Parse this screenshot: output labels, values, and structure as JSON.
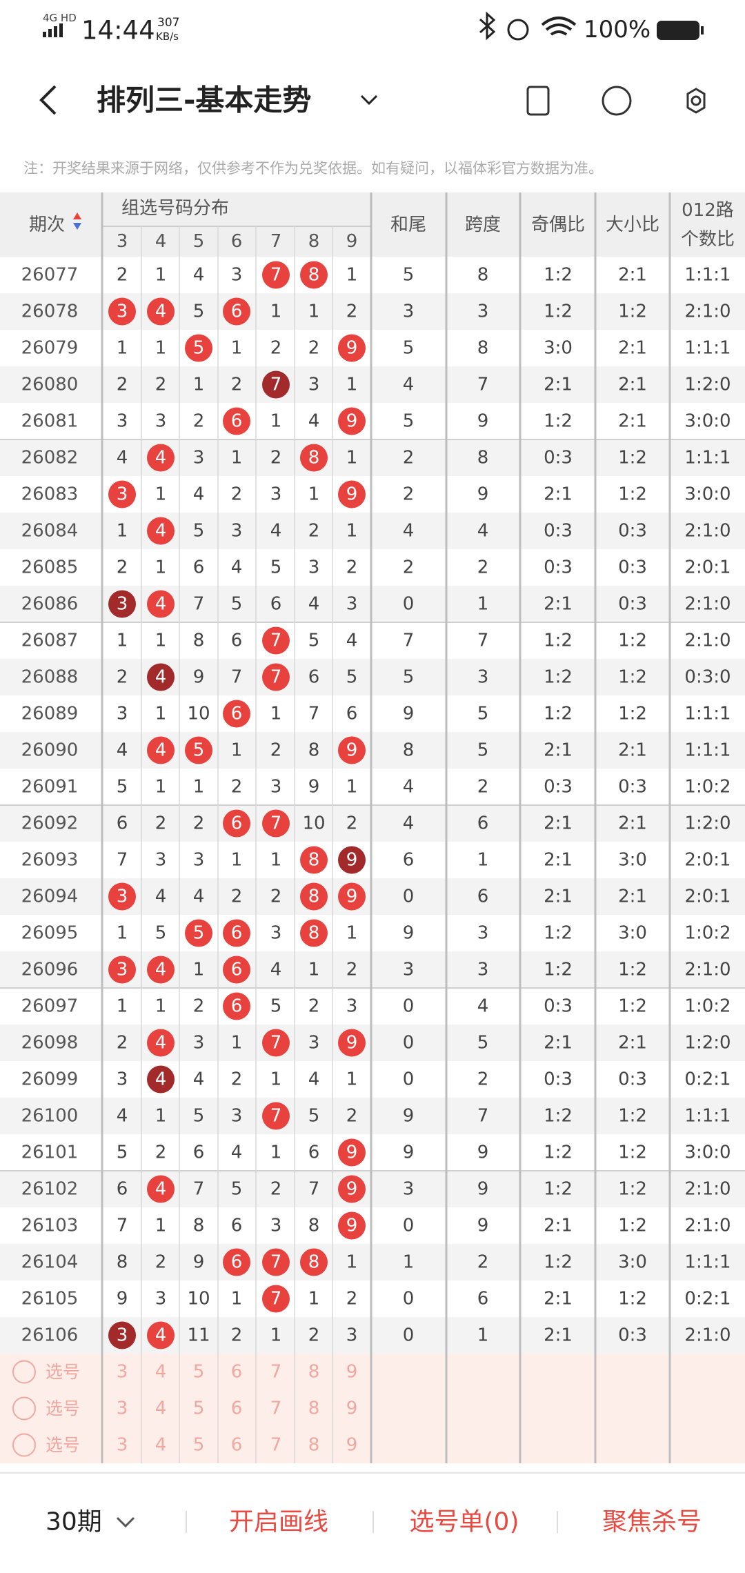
{
  "status_bar": {
    "network": "4G HD",
    "time": "14:44",
    "speed": "307",
    "speed_unit": "KB/s",
    "battery": "100%"
  },
  "header": {
    "title": "排列三-基本走势"
  },
  "note": "注：开奖结果来源于网络，仅供参考不作为兑奖依据。如有疑问，以福体彩官方数据为准。",
  "table": {
    "columns": {
      "period": "期次",
      "group": "组选号码分布",
      "digits": [
        3,
        4,
        5,
        6,
        7,
        8,
        9
      ],
      "sum_tail": "和尾",
      "span": "跨度",
      "odd_even": "奇偶比",
      "big_small": "大小比",
      "road": [
        "012路",
        "个数比"
      ]
    },
    "rows": [
      {
        "period": 26077,
        "cells": [
          2,
          1,
          4,
          3,
          {
            "value": 7,
            "color": "#e8423f"
          },
          {
            "value": 8,
            "color": "#e8423f"
          },
          1
        ],
        "sum_tail": 5,
        "span": 8,
        "odd_even": "1:2",
        "big_small": "2:1",
        "road": "1:1:1"
      },
      {
        "period": 26078,
        "cells": [
          {
            "value": 3,
            "color": "#e8423f"
          },
          {
            "value": 4,
            "color": "#e8423f"
          },
          5,
          {
            "value": 6,
            "color": "#e8423f"
          },
          1,
          1,
          2
        ],
        "sum_tail": 3,
        "span": 3,
        "odd_even": "1:2",
        "big_small": "1:2",
        "road": "2:1:0"
      },
      {
        "period": 26079,
        "cells": [
          1,
          1,
          {
            "value": 5,
            "color": "#e8423f"
          },
          1,
          2,
          2,
          {
            "value": 9,
            "color": "#e8423f"
          }
        ],
        "sum_tail": 5,
        "span": 8,
        "odd_even": "3:0",
        "big_small": "2:1",
        "road": "1:1:1"
      },
      {
        "period": 26080,
        "cells": [
          2,
          2,
          1,
          2,
          {
            "value": 7,
            "color": "#a22a2b"
          },
          3,
          1
        ],
        "sum_tail": 4,
        "span": 7,
        "odd_even": "2:1",
        "big_small": "2:1",
        "road": "1:2:0"
      },
      {
        "period": 26081,
        "cells": [
          3,
          3,
          2,
          {
            "value": 6,
            "color": "#e8423f"
          },
          1,
          4,
          {
            "value": 9,
            "color": "#e8423f"
          }
        ],
        "sum_tail": 5,
        "span": 9,
        "odd_even": "1:2",
        "big_small": "2:1",
        "road": "3:0:0"
      },
      {
        "period": 26082,
        "cells": [
          4,
          {
            "value": 4,
            "color": "#e8423f"
          },
          3,
          1,
          2,
          {
            "value": 8,
            "color": "#e8423f"
          },
          1
        ],
        "sum_tail": 2,
        "span": 8,
        "odd_even": "0:3",
        "big_small": "1:2",
        "road": "1:1:1"
      },
      {
        "period": 26083,
        "cells": [
          {
            "value": 3,
            "color": "#e8423f"
          },
          1,
          4,
          2,
          3,
          1,
          {
            "value": 9,
            "color": "#e8423f"
          }
        ],
        "sum_tail": 2,
        "span": 9,
        "odd_even": "2:1",
        "big_small": "1:2",
        "road": "3:0:0"
      },
      {
        "period": 26084,
        "cells": [
          1,
          {
            "value": 4,
            "color": "#e8423f"
          },
          5,
          3,
          4,
          2,
          1
        ],
        "sum_tail": 4,
        "span": 4,
        "odd_even": "0:3",
        "big_small": "0:3",
        "road": "2:1:0"
      },
      {
        "period": 26085,
        "cells": [
          2,
          1,
          6,
          4,
          5,
          3,
          2
        ],
        "sum_tail": 2,
        "span": 2,
        "odd_even": "0:3",
        "big_small": "0:3",
        "road": "2:0:1"
      },
      {
        "period": 26086,
        "cells": [
          {
            "value": 3,
            "color": "#a22a2b"
          },
          {
            "value": 4,
            "color": "#e8423f"
          },
          7,
          5,
          6,
          4,
          3
        ],
        "sum_tail": 0,
        "span": 1,
        "odd_even": "2:1",
        "big_small": "0:3",
        "road": "2:1:0"
      },
      {
        "period": 26087,
        "cells": [
          1,
          1,
          8,
          6,
          {
            "value": 7,
            "color": "#e8423f"
          },
          5,
          4
        ],
        "sum_tail": 7,
        "span": 7,
        "odd_even": "1:2",
        "big_small": "1:2",
        "road": "2:1:0"
      },
      {
        "period": 26088,
        "cells": [
          2,
          {
            "value": 4,
            "color": "#a22a2b"
          },
          9,
          7,
          {
            "value": 7,
            "color": "#e8423f"
          },
          6,
          5
        ],
        "sum_tail": 5,
        "span": 3,
        "odd_even": "1:2",
        "big_small": "1:2",
        "road": "0:3:0"
      },
      {
        "period": 26089,
        "cells": [
          3,
          1,
          10,
          {
            "value": 6,
            "color": "#e8423f"
          },
          1,
          7,
          6
        ],
        "sum_tail": 9,
        "span": 5,
        "odd_even": "1:2",
        "big_small": "1:2",
        "road": "1:1:1"
      },
      {
        "period": 26090,
        "cells": [
          4,
          {
            "value": 4,
            "color": "#e8423f"
          },
          {
            "value": 5,
            "color": "#e8423f"
          },
          1,
          2,
          8,
          {
            "value": 9,
            "color": "#e8423f"
          }
        ],
        "sum_tail": 8,
        "span": 5,
        "odd_even": "2:1",
        "big_small": "2:1",
        "road": "1:1:1"
      },
      {
        "period": 26091,
        "cells": [
          5,
          1,
          1,
          2,
          3,
          9,
          1
        ],
        "sum_tail": 4,
        "span": 2,
        "odd_even": "0:3",
        "big_small": "0:3",
        "road": "1:0:2"
      },
      {
        "period": 26092,
        "cells": [
          6,
          2,
          2,
          {
            "value": 6,
            "color": "#e8423f"
          },
          {
            "value": 7,
            "color": "#e8423f"
          },
          10,
          2
        ],
        "sum_tail": 4,
        "span": 6,
        "odd_even": "2:1",
        "big_small": "2:1",
        "road": "1:2:0"
      },
      {
        "period": 26093,
        "cells": [
          7,
          3,
          3,
          1,
          1,
          {
            "value": 8,
            "color": "#e8423f"
          },
          {
            "value": 9,
            "color": "#a22a2b"
          }
        ],
        "sum_tail": 6,
        "span": 1,
        "odd_even": "2:1",
        "big_small": "3:0",
        "road": "2:0:1"
      },
      {
        "period": 26094,
        "cells": [
          {
            "value": 3,
            "color": "#e8423f"
          },
          4,
          4,
          2,
          2,
          {
            "value": 8,
            "color": "#e8423f"
          },
          {
            "value": 9,
            "color": "#e8423f"
          }
        ],
        "sum_tail": 0,
        "span": 6,
        "odd_even": "2:1",
        "big_small": "2:1",
        "road": "2:0:1"
      },
      {
        "period": 26095,
        "cells": [
          1,
          5,
          {
            "value": 5,
            "color": "#e8423f"
          },
          {
            "value": 6,
            "color": "#e8423f"
          },
          3,
          {
            "value": 8,
            "color": "#e8423f"
          },
          1
        ],
        "sum_tail": 9,
        "span": 3,
        "odd_even": "1:2",
        "big_small": "3:0",
        "road": "1:0:2"
      },
      {
        "period": 26096,
        "cells": [
          {
            "value": 3,
            "color": "#e8423f"
          },
          {
            "value": 4,
            "color": "#e8423f"
          },
          1,
          {
            "value": 6,
            "color": "#e8423f"
          },
          4,
          1,
          2
        ],
        "sum_tail": 3,
        "span": 3,
        "odd_even": "1:2",
        "big_small": "1:2",
        "road": "2:1:0"
      },
      {
        "period": 26097,
        "cells": [
          1,
          1,
          2,
          {
            "value": 6,
            "color": "#e8423f"
          },
          5,
          2,
          3
        ],
        "sum_tail": 0,
        "span": 4,
        "odd_even": "0:3",
        "big_small": "1:2",
        "road": "1:0:2"
      },
      {
        "period": 26098,
        "cells": [
          2,
          {
            "value": 4,
            "color": "#e8423f"
          },
          3,
          1,
          {
            "value": 7,
            "color": "#e8423f"
          },
          3,
          {
            "value": 9,
            "color": "#e8423f"
          }
        ],
        "sum_tail": 0,
        "span": 5,
        "odd_even": "2:1",
        "big_small": "2:1",
        "road": "1:2:0"
      },
      {
        "period": 26099,
        "cells": [
          3,
          {
            "value": 4,
            "color": "#a22a2b"
          },
          4,
          2,
          1,
          4,
          1
        ],
        "sum_tail": 0,
        "span": 2,
        "odd_even": "0:3",
        "big_small": "0:3",
        "road": "0:2:1"
      },
      {
        "period": 26100,
        "cells": [
          4,
          1,
          5,
          3,
          {
            "value": 7,
            "color": "#e8423f"
          },
          5,
          2
        ],
        "sum_tail": 9,
        "span": 7,
        "odd_even": "1:2",
        "big_small": "1:2",
        "road": "1:1:1"
      },
      {
        "period": 26101,
        "cells": [
          5,
          2,
          6,
          4,
          1,
          6,
          {
            "value": 9,
            "color": "#e8423f"
          }
        ],
        "sum_tail": 9,
        "span": 9,
        "odd_even": "1:2",
        "big_small": "1:2",
        "road": "3:0:0"
      },
      {
        "period": 26102,
        "cells": [
          6,
          {
            "value": 4,
            "color": "#e8423f"
          },
          7,
          5,
          2,
          7,
          {
            "value": 9,
            "color": "#e8423f"
          }
        ],
        "sum_tail": 3,
        "span": 9,
        "odd_even": "1:2",
        "big_small": "1:2",
        "road": "2:1:0"
      },
      {
        "period": 26103,
        "cells": [
          7,
          1,
          8,
          6,
          3,
          8,
          {
            "value": 9,
            "color": "#e8423f"
          }
        ],
        "sum_tail": 0,
        "span": 9,
        "odd_even": "2:1",
        "big_small": "1:2",
        "road": "2:1:0"
      },
      {
        "period": 26104,
        "cells": [
          8,
          2,
          9,
          {
            "value": 6,
            "color": "#e8423f"
          },
          {
            "value": 7,
            "color": "#e8423f"
          },
          {
            "value": 8,
            "color": "#e8423f"
          },
          1
        ],
        "sum_tail": 1,
        "span": 2,
        "odd_even": "1:2",
        "big_small": "3:0",
        "road": "1:1:1"
      },
      {
        "period": 26105,
        "cells": [
          9,
          3,
          10,
          1,
          {
            "value": 7,
            "color": "#e8423f"
          },
          1,
          2
        ],
        "sum_tail": 0,
        "span": 6,
        "odd_even": "2:1",
        "big_small": "1:2",
        "road": "0:2:1"
      },
      {
        "period": 26106,
        "cells": [
          {
            "value": 3,
            "color": "#a22a2b"
          },
          {
            "value": 4,
            "color": "#e8423f"
          },
          11,
          2,
          1,
          2,
          3
        ],
        "sum_tail": 0,
        "span": 1,
        "odd_even": "2:1",
        "big_small": "0:3",
        "road": "2:1:0"
      }
    ],
    "pick_label": "选号",
    "pick_rows": 3
  },
  "footer": {
    "period_select": "30期",
    "draw_lines": "开启画线",
    "pick_list": "选号单(0)",
    "focus_kill": "聚焦杀号"
  }
}
